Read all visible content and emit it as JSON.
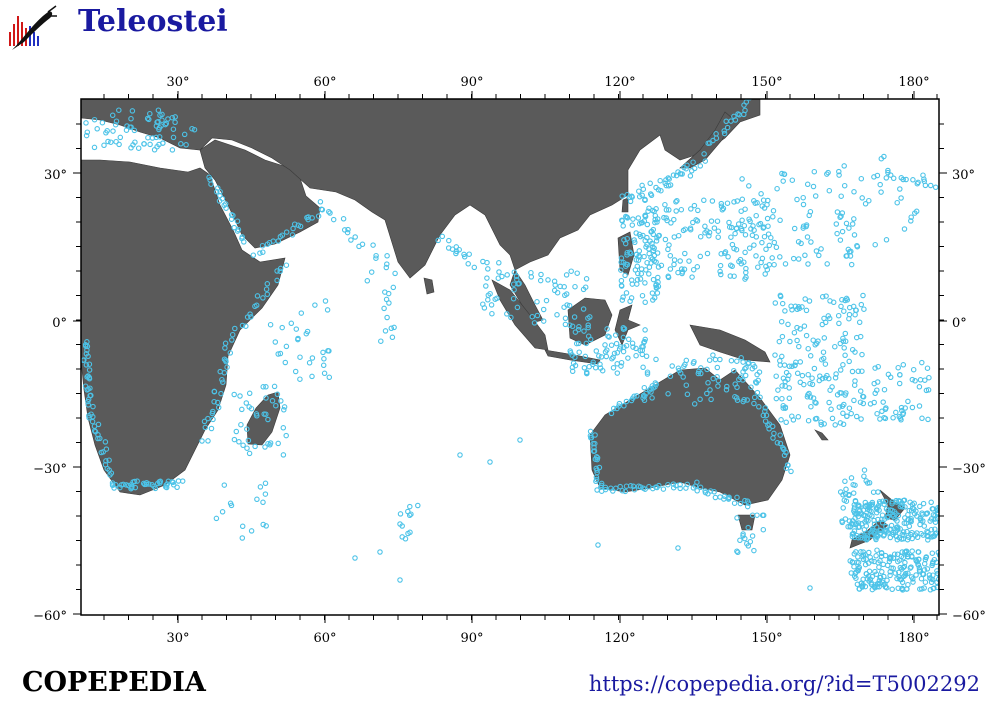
{
  "header": {
    "title": "Teleostei"
  },
  "footer": {
    "brand": "COPEPEDIA",
    "url": "https://copepedia.org/?id=T5002292"
  },
  "map": {
    "lon_range": [
      10,
      186
    ],
    "lat_range": [
      -60,
      45
    ],
    "x_ticks": [
      "30°",
      "60°",
      "90°",
      "120°",
      "150°",
      "180°"
    ],
    "y_ticks": [
      "30°",
      "0°",
      "−30°",
      "−60°"
    ],
    "land_color": "#5a5a5a",
    "point_color": "#4cc3e8"
  }
}
